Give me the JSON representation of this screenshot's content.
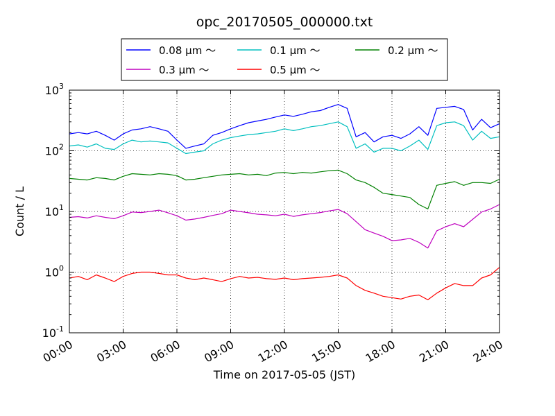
{
  "chart_data": {
    "type": "line",
    "title": "opc_20170505_000000.txt",
    "xlabel": "Time on 2017-05-05 (JST)",
    "ylabel": "Count / L",
    "yscale": "log",
    "ylim": [
      0.1,
      1000
    ],
    "xlim": [
      0,
      24
    ],
    "grid": true,
    "legend_placement": "top-center",
    "x_tick_labels": [
      "00:00",
      "03:00",
      "06:00",
      "09:00",
      "12:00",
      "15:00",
      "18:00",
      "21:00",
      "24:00"
    ],
    "y_tick_labels": [
      {
        "base": "10",
        "exp": "-1"
      },
      {
        "base": "10",
        "exp": "0"
      },
      {
        "base": "10",
        "exp": "1"
      },
      {
        "base": "10",
        "exp": "2"
      },
      {
        "base": "10",
        "exp": "3"
      }
    ],
    "x_hours": [
      0,
      0.5,
      1,
      1.5,
      2,
      2.5,
      3,
      3.5,
      4,
      4.5,
      5,
      5.5,
      6,
      6.5,
      7,
      7.5,
      8,
      8.5,
      9,
      9.5,
      10,
      10.5,
      11,
      11.5,
      12,
      12.5,
      13,
      13.5,
      14,
      14.5,
      15,
      15.5,
      16,
      16.5,
      17,
      17.5,
      18,
      18.5,
      19,
      19.5,
      20,
      20.5,
      21,
      21.5,
      22,
      22.5,
      23,
      23.5,
      24
    ],
    "series": [
      {
        "name": "0.08 μm ～",
        "color": "#0000ff",
        "values": [
          190,
          200,
          190,
          210,
          180,
          150,
          190,
          220,
          230,
          250,
          230,
          210,
          150,
          110,
          120,
          130,
          180,
          200,
          230,
          260,
          290,
          310,
          330,
          360,
          390,
          370,
          400,
          440,
          460,
          520,
          580,
          500,
          170,
          200,
          140,
          170,
          180,
          160,
          190,
          250,
          180,
          500,
          520,
          540,
          480,
          220,
          330,
          240,
          280
        ]
      },
      {
        "name": "0.1 μm ～",
        "color": "#00bfbf",
        "values": [
          120,
          125,
          115,
          130,
          110,
          105,
          130,
          150,
          140,
          145,
          140,
          135,
          110,
          90,
          95,
          100,
          130,
          150,
          165,
          175,
          185,
          190,
          200,
          210,
          230,
          215,
          230,
          250,
          260,
          280,
          300,
          250,
          110,
          130,
          95,
          110,
          110,
          100,
          120,
          150,
          105,
          260,
          290,
          300,
          260,
          150,
          210,
          160,
          170
        ]
      },
      {
        "name": "0.2 μm ～",
        "color": "#008000",
        "values": [
          35,
          34,
          33,
          36,
          35,
          33,
          38,
          42,
          41,
          40,
          42,
          41,
          39,
          33,
          34,
          36,
          38,
          40,
          41,
          42,
          40,
          41,
          39,
          43,
          44,
          42,
          44,
          43,
          45,
          47,
          48,
          42,
          33,
          30,
          25,
          20,
          19,
          18,
          17,
          13,
          11,
          27,
          29,
          31,
          27,
          30,
          30,
          29,
          34
        ]
      },
      {
        "name": "0.3 μm ～",
        "color": "#bf00bf",
        "values": [
          8,
          8.2,
          7.8,
          8.5,
          8,
          7.6,
          8.5,
          9.8,
          9.6,
          10,
          10.5,
          9.5,
          8.5,
          7.2,
          7.5,
          8,
          8.6,
          9.2,
          10.5,
          10,
          9.5,
          9,
          8.8,
          8.5,
          9,
          8.3,
          8.8,
          9.2,
          9.6,
          10.2,
          10.8,
          9.2,
          6.8,
          5,
          4.4,
          3.9,
          3.3,
          3.4,
          3.6,
          3.1,
          2.5,
          4.8,
          5.6,
          6.3,
          5.6,
          7.4,
          9.8,
          11,
          13
        ]
      },
      {
        "name": "0.5 μm ～",
        "color": "#ff0000",
        "values": [
          0.8,
          0.85,
          0.75,
          0.9,
          0.8,
          0.7,
          0.85,
          0.95,
          1,
          1,
          0.95,
          0.9,
          0.9,
          0.8,
          0.75,
          0.8,
          0.75,
          0.7,
          0.78,
          0.85,
          0.8,
          0.82,
          0.78,
          0.76,
          0.8,
          0.75,
          0.78,
          0.8,
          0.82,
          0.85,
          0.9,
          0.8,
          0.6,
          0.5,
          0.45,
          0.4,
          0.38,
          0.36,
          0.4,
          0.42,
          0.35,
          0.45,
          0.55,
          0.65,
          0.6,
          0.6,
          0.8,
          0.9,
          1.2
        ]
      }
    ]
  }
}
